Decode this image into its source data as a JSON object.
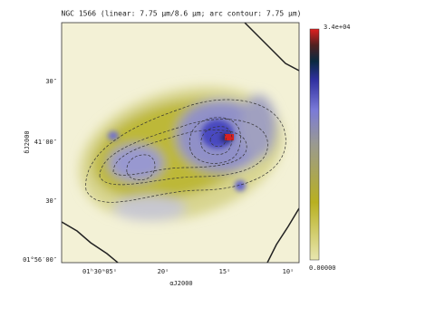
{
  "title": "NGC 1566 (linear: 7.75 μm/8.6 μm; arc contour: 7.75 μm)",
  "x_axis_label": "αJ2000",
  "y_axis_label": "δJ2000",
  "x_ticks": [
    "01ʰ30ᵐ05ˢ",
    "20ˢ",
    "15ˢ",
    "10ˢ"
  ],
  "y_ticks": [
    "30″",
    "41′00″",
    "30″",
    "01°56′00″"
  ],
  "colorbar": {
    "max_label": "3.4e+04",
    "min_label": "0.00000"
  }
}
